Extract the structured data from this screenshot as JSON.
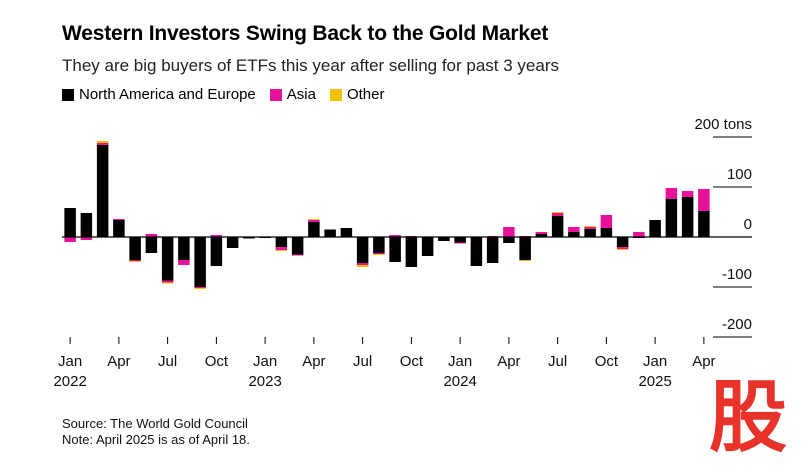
{
  "header": {
    "title": "Western Investors Swing Back to the Gold Market",
    "subtitle": "They are big buyers of ETFs this year after selling for past 3 years"
  },
  "legend": [
    {
      "label": "North America and Europe",
      "color": "#000000"
    },
    {
      "label": "Asia",
      "color": "#e8119a"
    },
    {
      "label": "Other",
      "color": "#f2c200"
    }
  ],
  "footer": {
    "source": "Source: The World Gold Council",
    "note": "Note: April 2025 is as of April 18."
  },
  "watermark": {
    "icon": "gu-stamp-icon",
    "text": "股",
    "color": "#e8322a"
  },
  "chart_data": {
    "type": "bar",
    "stacked": true,
    "y_unit": "tons",
    "ylim": [
      -200,
      200
    ],
    "y_ticks": [
      {
        "value": 200,
        "label": "200 tons"
      },
      {
        "value": 100,
        "label": "100"
      },
      {
        "value": 0,
        "label": "0"
      },
      {
        "value": -100,
        "label": "-100"
      },
      {
        "value": -200,
        "label": "-200"
      }
    ],
    "x_ticks": [
      {
        "index": 0,
        "label": "Jan",
        "year": "2022"
      },
      {
        "index": 3,
        "label": "Apr"
      },
      {
        "index": 6,
        "label": "Jul"
      },
      {
        "index": 9,
        "label": "Oct"
      },
      {
        "index": 12,
        "label": "Jan",
        "year": "2023"
      },
      {
        "index": 15,
        "label": "Apr"
      },
      {
        "index": 18,
        "label": "Jul"
      },
      {
        "index": 21,
        "label": "Oct"
      },
      {
        "index": 24,
        "label": "Jan",
        "year": "2024"
      },
      {
        "index": 27,
        "label": "Apr"
      },
      {
        "index": 30,
        "label": "Jul"
      },
      {
        "index": 33,
        "label": "Oct"
      },
      {
        "index": 36,
        "label": "Jan",
        "year": "2025"
      },
      {
        "index": 39,
        "label": "Apr"
      }
    ],
    "categories": [
      "Jan 2022",
      "Feb 2022",
      "Mar 2022",
      "Apr 2022",
      "May 2022",
      "Jun 2022",
      "Jul 2022",
      "Aug 2022",
      "Sep 2022",
      "Oct 2022",
      "Nov 2022",
      "Dec 2022",
      "Jan 2023",
      "Feb 2023",
      "Mar 2023",
      "Apr 2023",
      "May 2023",
      "Jun 2023",
      "Jul 2023",
      "Aug 2023",
      "Sep 2023",
      "Oct 2023",
      "Nov 2023",
      "Dec 2023",
      "Jan 2024",
      "Feb 2024",
      "Mar 2024",
      "Apr 2024",
      "May 2024",
      "Jun 2024",
      "Jul 2024",
      "Aug 2024",
      "Sep 2024",
      "Oct 2024",
      "Nov 2024",
      "Dec 2024",
      "Jan 2025",
      "Feb 2025",
      "Mar 2025",
      "Apr 2025"
    ],
    "series": [
      {
        "name": "North America and Europe",
        "color": "#000000",
        "values": [
          58,
          48,
          184,
          34,
          -46,
          -32,
          -87,
          -46,
          -100,
          -58,
          -22,
          -3,
          -2,
          -20,
          -35,
          30,
          15,
          18,
          -52,
          -32,
          -50,
          -60,
          -38,
          -8,
          -11,
          -58,
          -52,
          -12,
          -46,
          6,
          42,
          10,
          16,
          18,
          -20,
          -2,
          34,
          76,
          80,
          52
        ]
      },
      {
        "name": "Asia",
        "color": "#e8119a",
        "values": [
          -10,
          -6,
          4,
          2,
          -2,
          6,
          -4,
          -10,
          -2,
          4,
          0,
          0,
          0,
          -6,
          -2,
          4,
          0,
          0,
          -4,
          -2,
          4,
          2,
          0,
          0,
          -2,
          0,
          2,
          20,
          2,
          4,
          6,
          10,
          4,
          26,
          -4,
          10,
          0,
          22,
          12,
          44
        ]
      },
      {
        "name": "Other",
        "color": "#f2c200",
        "values": [
          0,
          0,
          4,
          0,
          -2,
          0,
          -2,
          0,
          -2,
          0,
          0,
          0,
          0,
          -2,
          0,
          2,
          0,
          0,
          -4,
          -2,
          0,
          0,
          0,
          0,
          0,
          0,
          0,
          0,
          -2,
          0,
          2,
          0,
          2,
          0,
          -2,
          0,
          0,
          0,
          0,
          0
        ]
      }
    ]
  }
}
